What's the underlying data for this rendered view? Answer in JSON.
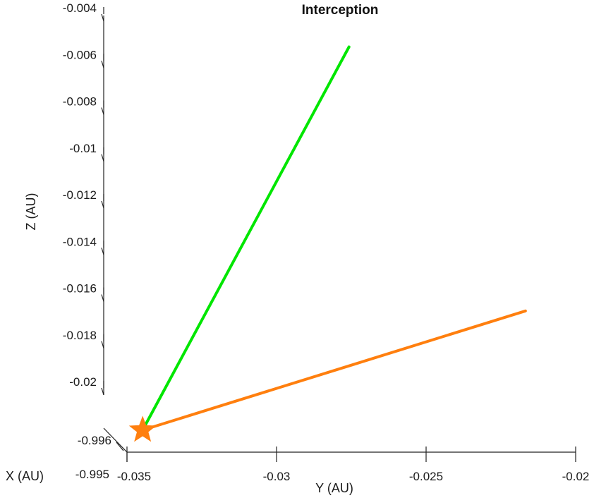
{
  "chart_data": {
    "type": "line",
    "projection": "3d",
    "title": "Interception",
    "axes": {
      "x": {
        "label": "X (AU)",
        "ticks": [
          -0.996,
          -0.995
        ],
        "tick_labels": [
          "-0.996",
          "-0.995"
        ]
      },
      "y": {
        "label": "Y (AU)",
        "range": [
          -0.035,
          -0.02
        ],
        "ticks": [
          -0.035,
          -0.03,
          -0.025,
          -0.02
        ],
        "tick_labels": [
          "-0.035",
          "-0.03",
          "-0.025",
          "-0.02"
        ]
      },
      "z": {
        "label": "Z (AU)",
        "range": [
          -0.022,
          -0.004
        ],
        "ticks": [
          -0.004,
          -0.006,
          -0.008,
          -0.01,
          -0.012,
          -0.014,
          -0.016,
          -0.018,
          -0.02
        ],
        "tick_labels": [
          "-0.004",
          "-0.006",
          "-0.008",
          "-0.01",
          "-0.012",
          "-0.014",
          "-0.016",
          "-0.018",
          "-0.02"
        ]
      }
    },
    "series": [
      {
        "color": "#00e600",
        "y": [
          -0.0341,
          -0.0272
        ],
        "z": [
          -0.0212,
          -0.0048
        ]
      },
      {
        "color": "#ff7f0e",
        "y": [
          -0.0341,
          -0.0213
        ],
        "z": [
          -0.0212,
          -0.0161
        ]
      }
    ],
    "markers": [
      {
        "shape": "star",
        "color": "#ff7f0e",
        "y": -0.0341,
        "z": -0.0212
      }
    ],
    "grid": false,
    "legend": "none"
  }
}
